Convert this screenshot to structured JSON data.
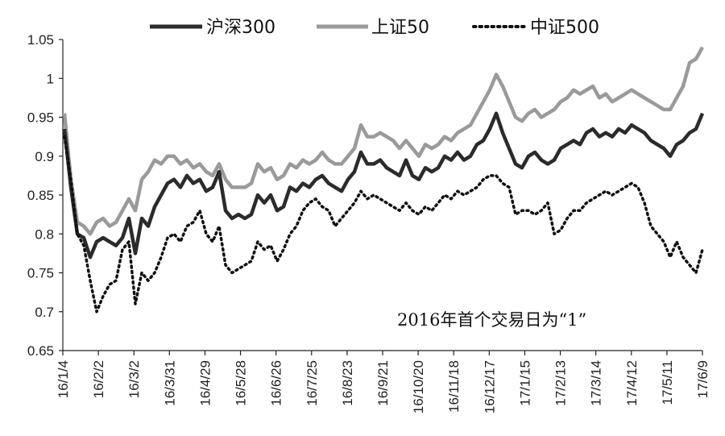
{
  "chart_data": {
    "type": "line",
    "title": "",
    "xlabel": "",
    "ylabel": "",
    "ylim": [
      0.65,
      1.05
    ],
    "yticks": [
      "1.05",
      "1",
      "0.95",
      "0.9",
      "0.85",
      "0.8",
      "0.75",
      "0.7",
      "0.65"
    ],
    "ytick_values": [
      1.05,
      1.0,
      0.95,
      0.9,
      0.85,
      0.8,
      0.75,
      0.7,
      0.65
    ],
    "xticks": [
      "16/1/4",
      "16/2/2",
      "16/3/2",
      "16/3/31",
      "16/4/29",
      "16/5/28",
      "16/6/26",
      "16/7/25",
      "16/8/23",
      "16/9/21",
      "16/10/20",
      "16/11/18",
      "16/12/17",
      "17/1/15",
      "17/2/13",
      "17/3/14",
      "17/4/12",
      "17/5/11",
      "17/6/9"
    ],
    "annotation": "2016年首个交易日为“1”",
    "legend_position": "top-center",
    "grid": false,
    "series": [
      {
        "name": "沪深300",
        "color": "#2b2b2b",
        "style": "solid-thick",
        "values": [
          0.935,
          0.86,
          0.8,
          0.795,
          0.77,
          0.79,
          0.795,
          0.79,
          0.785,
          0.795,
          0.82,
          0.775,
          0.82,
          0.81,
          0.835,
          0.85,
          0.865,
          0.87,
          0.86,
          0.875,
          0.865,
          0.87,
          0.855,
          0.86,
          0.88,
          0.83,
          0.82,
          0.825,
          0.82,
          0.825,
          0.85,
          0.84,
          0.85,
          0.83,
          0.835,
          0.86,
          0.855,
          0.865,
          0.86,
          0.87,
          0.875,
          0.865,
          0.86,
          0.855,
          0.87,
          0.88,
          0.905,
          0.89,
          0.89,
          0.895,
          0.885,
          0.88,
          0.875,
          0.895,
          0.875,
          0.87,
          0.885,
          0.88,
          0.885,
          0.9,
          0.895,
          0.905,
          0.895,
          0.9,
          0.915,
          0.92,
          0.935,
          0.955,
          0.93,
          0.91,
          0.89,
          0.885,
          0.9,
          0.905,
          0.895,
          0.89,
          0.895,
          0.91,
          0.915,
          0.92,
          0.915,
          0.93,
          0.935,
          0.925,
          0.93,
          0.925,
          0.935,
          0.93,
          0.94,
          0.935,
          0.93,
          0.92,
          0.915,
          0.91,
          0.9,
          0.915,
          0.92,
          0.93,
          0.935,
          0.955
        ]
      },
      {
        "name": "上证50",
        "color": "#9a9a9a",
        "style": "solid-thick",
        "values": [
          0.955,
          0.87,
          0.815,
          0.81,
          0.8,
          0.815,
          0.82,
          0.81,
          0.815,
          0.83,
          0.845,
          0.83,
          0.87,
          0.88,
          0.895,
          0.89,
          0.9,
          0.9,
          0.89,
          0.895,
          0.885,
          0.89,
          0.88,
          0.875,
          0.89,
          0.87,
          0.86,
          0.86,
          0.86,
          0.865,
          0.89,
          0.88,
          0.885,
          0.87,
          0.875,
          0.89,
          0.885,
          0.895,
          0.89,
          0.895,
          0.905,
          0.895,
          0.89,
          0.89,
          0.9,
          0.91,
          0.94,
          0.925,
          0.925,
          0.93,
          0.925,
          0.92,
          0.91,
          0.92,
          0.91,
          0.9,
          0.915,
          0.91,
          0.915,
          0.925,
          0.92,
          0.93,
          0.935,
          0.94,
          0.955,
          0.97,
          0.985,
          1.005,
          0.99,
          0.97,
          0.95,
          0.945,
          0.955,
          0.96,
          0.95,
          0.955,
          0.96,
          0.97,
          0.975,
          0.985,
          0.98,
          0.985,
          0.99,
          0.975,
          0.98,
          0.97,
          0.975,
          0.98,
          0.985,
          0.98,
          0.975,
          0.97,
          0.965,
          0.96,
          0.96,
          0.975,
          0.99,
          1.02,
          1.025,
          1.04
        ]
      },
      {
        "name": "中证500",
        "color": "#111111",
        "style": "dotted",
        "values": [
          0.925,
          0.87,
          0.8,
          0.785,
          0.74,
          0.7,
          0.72,
          0.735,
          0.74,
          0.78,
          0.79,
          0.71,
          0.75,
          0.74,
          0.75,
          0.77,
          0.795,
          0.8,
          0.79,
          0.81,
          0.815,
          0.83,
          0.8,
          0.79,
          0.81,
          0.76,
          0.75,
          0.755,
          0.76,
          0.765,
          0.79,
          0.78,
          0.785,
          0.765,
          0.78,
          0.8,
          0.81,
          0.83,
          0.84,
          0.845,
          0.835,
          0.83,
          0.81,
          0.82,
          0.83,
          0.84,
          0.855,
          0.845,
          0.85,
          0.845,
          0.84,
          0.835,
          0.83,
          0.84,
          0.83,
          0.825,
          0.835,
          0.83,
          0.84,
          0.85,
          0.845,
          0.855,
          0.85,
          0.855,
          0.86,
          0.87,
          0.875,
          0.875,
          0.865,
          0.86,
          0.825,
          0.83,
          0.83,
          0.825,
          0.83,
          0.84,
          0.8,
          0.805,
          0.82,
          0.83,
          0.83,
          0.84,
          0.845,
          0.85,
          0.855,
          0.85,
          0.855,
          0.86,
          0.865,
          0.86,
          0.84,
          0.81,
          0.8,
          0.79,
          0.77,
          0.79,
          0.77,
          0.76,
          0.75,
          0.78
        ]
      }
    ]
  }
}
